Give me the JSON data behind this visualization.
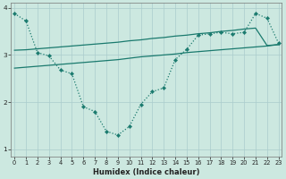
{
  "xlabel": "Humidex (Indice chaleur)",
  "background_color": "#cce8e0",
  "grid_color": "#aacccc",
  "line_color": "#1a7a6e",
  "line1_x": [
    0,
    1,
    2,
    3,
    4,
    5,
    6,
    7,
    8,
    9,
    10,
    11,
    12,
    13,
    14,
    15,
    16,
    17,
    18,
    19,
    20,
    21,
    22,
    23
  ],
  "line1_y": [
    3.88,
    3.72,
    3.05,
    2.98,
    2.68,
    2.6,
    1.9,
    1.8,
    1.38,
    1.3,
    1.48,
    1.95,
    2.22,
    2.3,
    2.9,
    3.12,
    3.42,
    3.45,
    3.48,
    3.45,
    3.48,
    3.88,
    3.78,
    3.25
  ],
  "line2_x": [
    0,
    1,
    2,
    3,
    4,
    5,
    6,
    7,
    8,
    9,
    10,
    11,
    12,
    13,
    14,
    15,
    16,
    17,
    18,
    19,
    20,
    21,
    22,
    23
  ],
  "line2_y": [
    3.1,
    3.11,
    3.13,
    3.15,
    3.17,
    3.19,
    3.21,
    3.23,
    3.25,
    3.27,
    3.3,
    3.32,
    3.35,
    3.37,
    3.4,
    3.42,
    3.45,
    3.47,
    3.5,
    3.52,
    3.55,
    3.57,
    3.2,
    3.22
  ],
  "line3_x": [
    0,
    1,
    2,
    3,
    4,
    5,
    6,
    7,
    8,
    9,
    10,
    11,
    12,
    13,
    14,
    15,
    16,
    17,
    18,
    19,
    20,
    21,
    22,
    23
  ],
  "line3_y": [
    2.72,
    2.74,
    2.76,
    2.78,
    2.8,
    2.82,
    2.84,
    2.86,
    2.88,
    2.9,
    2.93,
    2.96,
    2.98,
    3.0,
    3.02,
    3.05,
    3.07,
    3.09,
    3.11,
    3.13,
    3.15,
    3.17,
    3.19,
    3.22
  ],
  "ylim": [
    0.85,
    4.1
  ],
  "xlim": [
    -0.3,
    23.3
  ],
  "yticks": [
    1,
    2,
    3,
    4
  ],
  "xticks": [
    0,
    1,
    2,
    3,
    4,
    5,
    6,
    7,
    8,
    9,
    10,
    11,
    12,
    13,
    14,
    15,
    16,
    17,
    18,
    19,
    20,
    21,
    22,
    23
  ],
  "xlabel_fontsize": 6,
  "tick_fontsize": 4.8,
  "linewidth": 0.9,
  "markersize": 2.2
}
